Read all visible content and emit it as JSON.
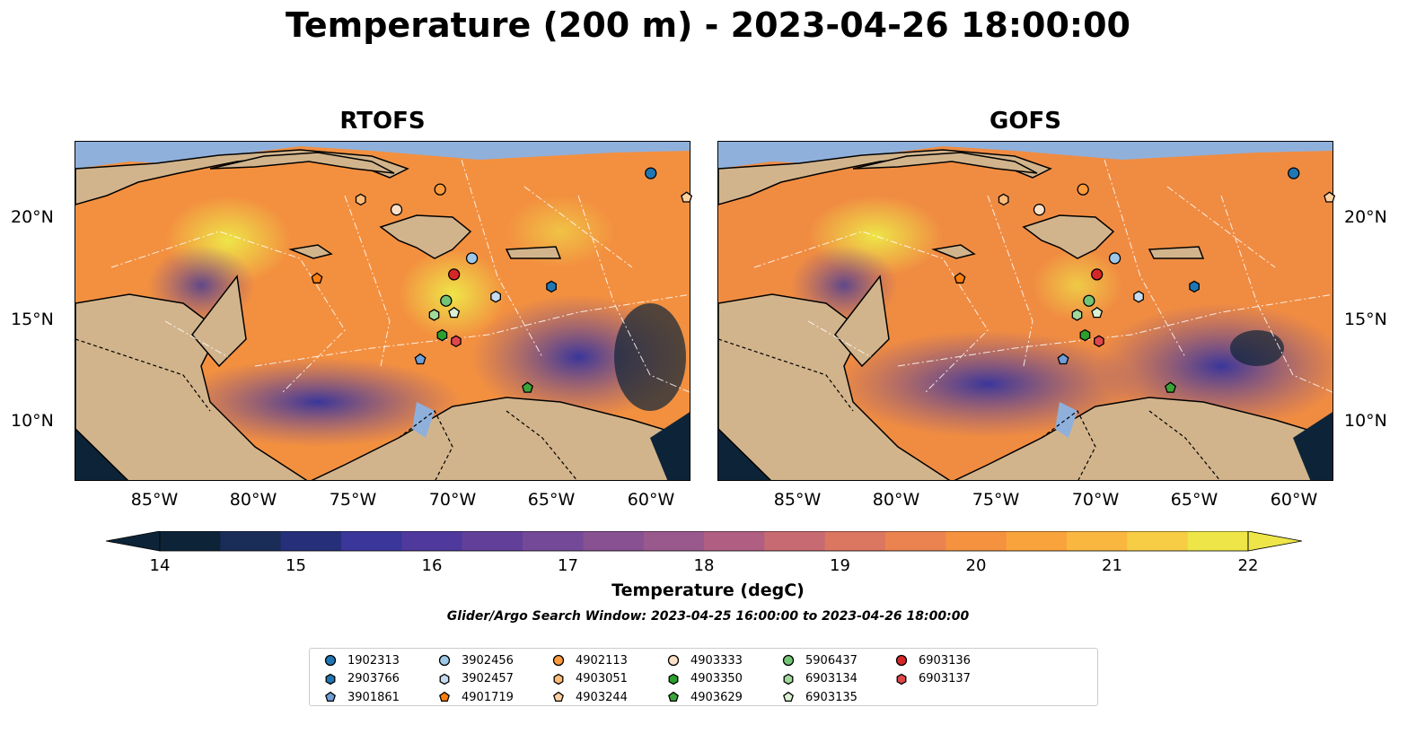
{
  "title": "Temperature (200 m) - 2023-04-26 18:00:00",
  "panels": [
    {
      "title": "RTOFS"
    },
    {
      "title": "GOFS"
    }
  ],
  "axes": {
    "lat_ticks": [
      "20°N",
      "15°N",
      "10°N"
    ],
    "lon_ticks": [
      "85°W",
      "80°W",
      "75°W",
      "70°W",
      "65°W",
      "60°W"
    ]
  },
  "colorbar": {
    "label": "Temperature (degC)",
    "ticks": [
      "14",
      "15",
      "16",
      "17",
      "18",
      "19",
      "20",
      "21",
      "22"
    ],
    "colors": [
      "#0d2438",
      "#1a2c58",
      "#26307a",
      "#3a369a",
      "#50399c",
      "#62409a",
      "#744997",
      "#875192",
      "#9a598d",
      "#b05f82",
      "#c76a72",
      "#db7661",
      "#ea8350",
      "#f49240",
      "#f9a33c",
      "#fab73f",
      "#f6cd44",
      "#eee548"
    ]
  },
  "search_window": "Glider/Argo Search Window: 2023-04-25 16:00:00 to 2023-04-26 18:00:00",
  "legend": [
    {
      "id": "1902313",
      "marker": "circle",
      "color": "#1f77b4"
    },
    {
      "id": "2903766",
      "marker": "hexagon",
      "color": "#1f77b4"
    },
    {
      "id": "3901861",
      "marker": "pentagon",
      "color": "#6f9fd8"
    },
    {
      "id": "3902456",
      "marker": "circle",
      "color": "#9dc8e8"
    },
    {
      "id": "3902457",
      "marker": "hexagon",
      "color": "#c6dbef"
    },
    {
      "id": "4901719",
      "marker": "pentagon",
      "color": "#ff7f0e"
    },
    {
      "id": "4902113",
      "marker": "circle",
      "color": "#ff9a3c"
    },
    {
      "id": "4903051",
      "marker": "hexagon",
      "color": "#ffbb78"
    },
    {
      "id": "4903244",
      "marker": "pentagon",
      "color": "#ffd0a0"
    },
    {
      "id": "4903333",
      "marker": "circle",
      "color": "#fde0c8"
    },
    {
      "id": "4903350",
      "marker": "hexagon",
      "color": "#2ca02c"
    },
    {
      "id": "4903629",
      "marker": "pentagon",
      "color": "#3aa43a"
    },
    {
      "id": "5906437",
      "marker": "circle",
      "color": "#74c476"
    },
    {
      "id": "6903134",
      "marker": "hexagon",
      "color": "#a1d99b"
    },
    {
      "id": "6903135",
      "marker": "pentagon",
      "color": "#d9f0d3"
    },
    {
      "id": "6903136",
      "marker": "circle",
      "color": "#d62728"
    },
    {
      "id": "6903137",
      "marker": "hexagon",
      "color": "#e0474c"
    }
  ],
  "floats": [
    {
      "id": "1902313",
      "lon": -60.0,
      "lat": 22.2
    },
    {
      "id": "3901861",
      "lon": -71.6,
      "lat": 13.0
    },
    {
      "id": "3902456",
      "lon": -69.0,
      "lat": 18.0
    },
    {
      "id": "3902457",
      "lon": -67.8,
      "lat": 16.1
    },
    {
      "id": "2903766",
      "lon": -65.0,
      "lat": 16.6
    },
    {
      "id": "4901719",
      "lon": -76.8,
      "lat": 17.0
    },
    {
      "id": "4902113",
      "lon": -70.6,
      "lat": 21.4
    },
    {
      "id": "4903051",
      "lon": -74.6,
      "lat": 20.9
    },
    {
      "id": "4903244",
      "lon": -58.2,
      "lat": 21.0
    },
    {
      "id": "4903333",
      "lon": -72.8,
      "lat": 20.4
    },
    {
      "id": "4903350",
      "lon": -70.5,
      "lat": 14.2
    },
    {
      "id": "4903629",
      "lon": -66.2,
      "lat": 11.6
    },
    {
      "id": "5906437",
      "lon": -70.3,
      "lat": 15.9
    },
    {
      "id": "6903134",
      "lon": -70.9,
      "lat": 15.2
    },
    {
      "id": "6903135",
      "lon": -69.9,
      "lat": 15.3
    },
    {
      "id": "6903136",
      "lon": -69.9,
      "lat": 17.2
    },
    {
      "id": "6903137",
      "lon": -69.8,
      "lat": 13.9
    }
  ]
}
